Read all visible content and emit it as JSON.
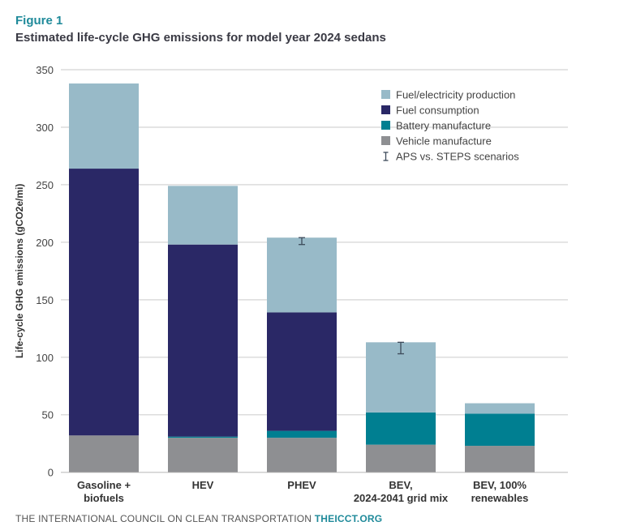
{
  "figure_label": "Figure 1",
  "footer": {
    "org": "THE INTERNATIONAL COUNCIL ON CLEAN TRANSPORTATION",
    "site": "THEICCT.ORG"
  },
  "chart_data": {
    "type": "bar",
    "stacked": true,
    "title": "Estimated life-cycle GHG emissions for model year 2024 sedans",
    "ylabel": "Life-cycle GHG emissions (gCO2e/mi)",
    "xlabel": "",
    "ylim": [
      0,
      350
    ],
    "yticks": [
      0,
      50,
      100,
      150,
      200,
      250,
      300,
      350
    ],
    "grid": true,
    "legend_position": "top-right",
    "categories": [
      [
        "Gasoline +",
        "biofuels"
      ],
      [
        "HEV"
      ],
      [
        "PHEV"
      ],
      [
        "BEV,",
        "2024-2041 grid mix"
      ],
      [
        "BEV, 100%",
        "renewables"
      ]
    ],
    "series": [
      {
        "name": "Vehicle manufacture",
        "color": "#8e8f92",
        "values": [
          32,
          30,
          30,
          24,
          23
        ]
      },
      {
        "name": "Battery manufacture",
        "color": "#007f91",
        "values": [
          0,
          1,
          6,
          28,
          28
        ]
      },
      {
        "name": "Fuel consumption",
        "color": "#2a2866",
        "values": [
          232,
          167,
          103,
          0,
          0
        ]
      },
      {
        "name": "Fuel/electricity production",
        "color": "#98bac8",
        "values": [
          74,
          51,
          65,
          61,
          9
        ]
      }
    ],
    "error_bars": {
      "name": "APS vs. STEPS scenarios",
      "ranges": [
        null,
        null,
        [
          198,
          204
        ],
        [
          103,
          113
        ],
        null
      ]
    }
  }
}
